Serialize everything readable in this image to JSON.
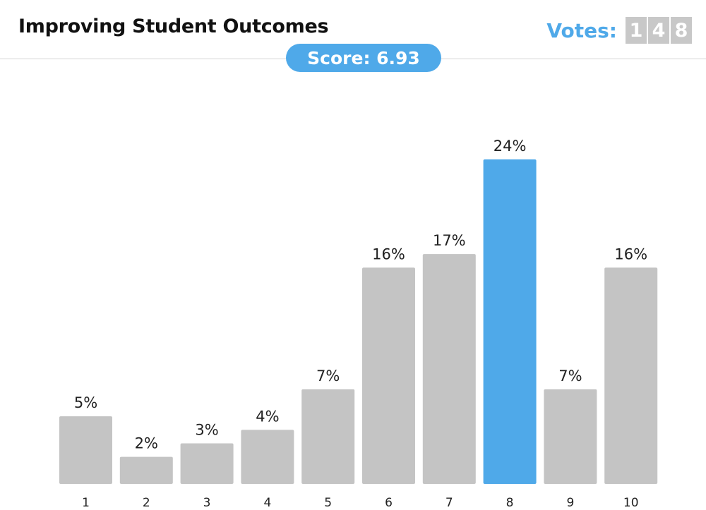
{
  "header": {
    "title": "Improving Student Outcomes",
    "votes_label": "Votes:",
    "votes_digits": [
      "1",
      "4",
      "8"
    ],
    "score_label": "Score: 6.93"
  },
  "colors": {
    "accent": "#4fa9e9",
    "bar": "#c4c4c4",
    "highlight_bar": "#4fa9e9"
  },
  "chart_data": {
    "type": "bar",
    "categories": [
      "1",
      "2",
      "3",
      "4",
      "5",
      "6",
      "7",
      "8",
      "9",
      "10"
    ],
    "values": [
      5,
      2,
      3,
      4,
      7,
      16,
      17,
      24,
      7,
      16
    ],
    "value_labels": [
      "5%",
      "2%",
      "3%",
      "4%",
      "7%",
      "16%",
      "17%",
      "24%",
      "7%",
      "16%"
    ],
    "highlight_category": "8",
    "title": "",
    "xlabel": "",
    "ylabel": "",
    "ylim": [
      0,
      24
    ],
    "grid": false,
    "legend": "none"
  }
}
